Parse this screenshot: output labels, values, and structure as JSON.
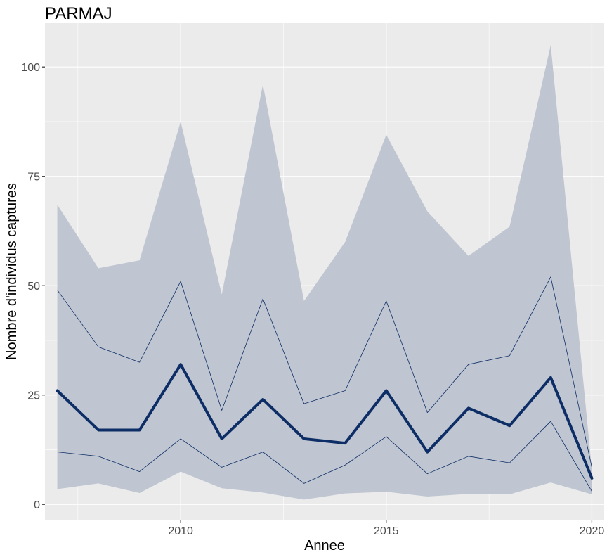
{
  "chart_data": {
    "type": "line",
    "title": "PARMAJ",
    "xlabel": "Annee",
    "ylabel": "Nombre d'individus captures",
    "x": [
      2007,
      2008,
      2009,
      2010,
      2011,
      2012,
      2013,
      2014,
      2015,
      2016,
      2017,
      2018,
      2019,
      2020
    ],
    "xlim": [
      2006.7,
      2020.3
    ],
    "ylim": [
      -3.5,
      110
    ],
    "x_ticks": [
      2010,
      2015,
      2020
    ],
    "y_ticks": [
      0,
      25,
      50,
      75,
      100
    ],
    "x_tick_labels": [
      "2010",
      "2015",
      "2020"
    ],
    "y_tick_labels": [
      "0",
      "25",
      "50",
      "75",
      "100"
    ],
    "grid": true,
    "legend": "none",
    "colors": {
      "panel": "#EBEBEB",
      "grid": "#FFFFFF",
      "band": "#BFC6D1",
      "line": "#0D2D66"
    },
    "series": [
      {
        "role": "outer-band-lower",
        "values": [
          3.5,
          4.8,
          2.6,
          7.5,
          3.7,
          2.7,
          1.1,
          2.5,
          2.9,
          1.8,
          2.4,
          2.3,
          5.0,
          2.3
        ]
      },
      {
        "role": "outer-band-upper",
        "values": [
          68.5,
          54.0,
          55.8,
          87.5,
          48.0,
          96.0,
          46.5,
          60.0,
          84.5,
          67.0,
          56.8,
          63.5,
          105.0,
          8.0
        ]
      },
      {
        "role": "inner-lower",
        "values": [
          12.0,
          11.0,
          7.5,
          15.0,
          8.5,
          12.0,
          4.8,
          9.0,
          15.5,
          7.0,
          11.0,
          9.5,
          19.0,
          3.0
        ]
      },
      {
        "role": "inner-upper",
        "values": [
          49.0,
          36.0,
          32.5,
          51.0,
          21.5,
          47.0,
          23.0,
          26.0,
          46.5,
          21.0,
          32.0,
          34.0,
          52.0,
          8.5
        ]
      },
      {
        "role": "median",
        "values": [
          26.0,
          17.0,
          17.0,
          32.0,
          15.0,
          24.0,
          15.0,
          14.0,
          26.0,
          12.0,
          22.0,
          18.0,
          29.0,
          6.0
        ]
      }
    ]
  }
}
